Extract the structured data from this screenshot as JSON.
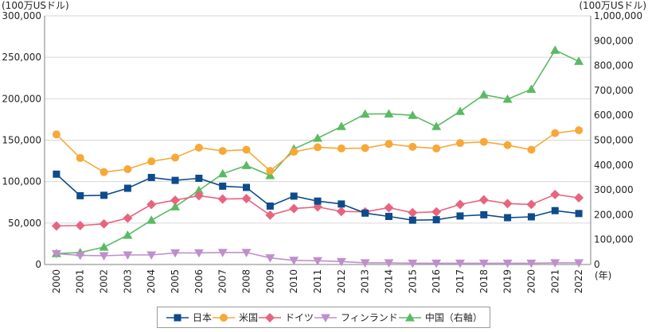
{
  "chart_data": {
    "type": "line",
    "left_unit": "(100万USドル)",
    "right_unit": "(100万USドル)",
    "x_unit": "(年)",
    "categories": [
      "2000",
      "2001",
      "2002",
      "2003",
      "2004",
      "2005",
      "2006",
      "2007",
      "2008",
      "2009",
      "2010",
      "2011",
      "2012",
      "2013",
      "2014",
      "2015",
      "2016",
      "2017",
      "2018",
      "2019",
      "2020",
      "2021",
      "2022"
    ],
    "left_ylim": [
      0,
      300000
    ],
    "right_ylim": [
      0,
      1000000
    ],
    "left_ticks": [
      "0",
      "50,000",
      "100,000",
      "150,000",
      "200,000",
      "250,000",
      "300,000"
    ],
    "right_ticks": [
      "0",
      "100,000",
      "200,000",
      "300,000",
      "400,000",
      "500,000",
      "600,000",
      "700,000",
      "800,000",
      "900,000",
      "1,000,000"
    ],
    "grid": true,
    "legend_position": "bottom",
    "series": [
      {
        "name": "日本",
        "axis": "left",
        "color": "#0d4b8c",
        "marker": "square",
        "values": [
          109000,
          83000,
          83500,
          92000,
          105000,
          101500,
          104000,
          94500,
          93000,
          70500,
          82500,
          76500,
          73000,
          62000,
          58000,
          53500,
          54000,
          58500,
          60000,
          56500,
          57500,
          65000,
          61500
        ]
      },
      {
        "name": "米国",
        "axis": "left",
        "color": "#f7a837",
        "marker": "circle",
        "values": [
          157000,
          128500,
          111500,
          115000,
          124500,
          129000,
          141000,
          137000,
          138500,
          113000,
          136000,
          141500,
          140000,
          140500,
          145500,
          142000,
          140000,
          146500,
          148000,
          144000,
          138500,
          158500,
          162000
        ]
      },
      {
        "name": "ドイツ",
        "axis": "left",
        "color": "#e8647e",
        "marker": "diamond",
        "values": [
          46500,
          47000,
          49000,
          56000,
          72500,
          77500,
          83000,
          79000,
          79500,
          59500,
          67500,
          69500,
          64000,
          63500,
          68500,
          62500,
          63500,
          72500,
          78000,
          73500,
          72500,
          84500,
          80500
        ]
      },
      {
        "name": "フィンランド",
        "axis": "left",
        "color": "#bf8fcc",
        "marker": "triangle-down",
        "values": [
          13000,
          11000,
          10500,
          11500,
          11500,
          14000,
          14000,
          14500,
          14500,
          8000,
          5000,
          4500,
          3500,
          2000,
          2000,
          1500,
          1500,
          1500,
          1500,
          1500,
          1500,
          2000,
          2000
        ]
      },
      {
        "name": "中国（右軸）",
        "axis": "right",
        "color": "#5aba64",
        "marker": "triangle-up",
        "values": [
          44000,
          48000,
          70000,
          118000,
          178000,
          232000,
          298000,
          365000,
          398000,
          358000,
          465000,
          508000,
          555000,
          605000,
          606000,
          600000,
          555000,
          616000,
          683000,
          665000,
          705000,
          862000,
          817000
        ]
      }
    ]
  }
}
